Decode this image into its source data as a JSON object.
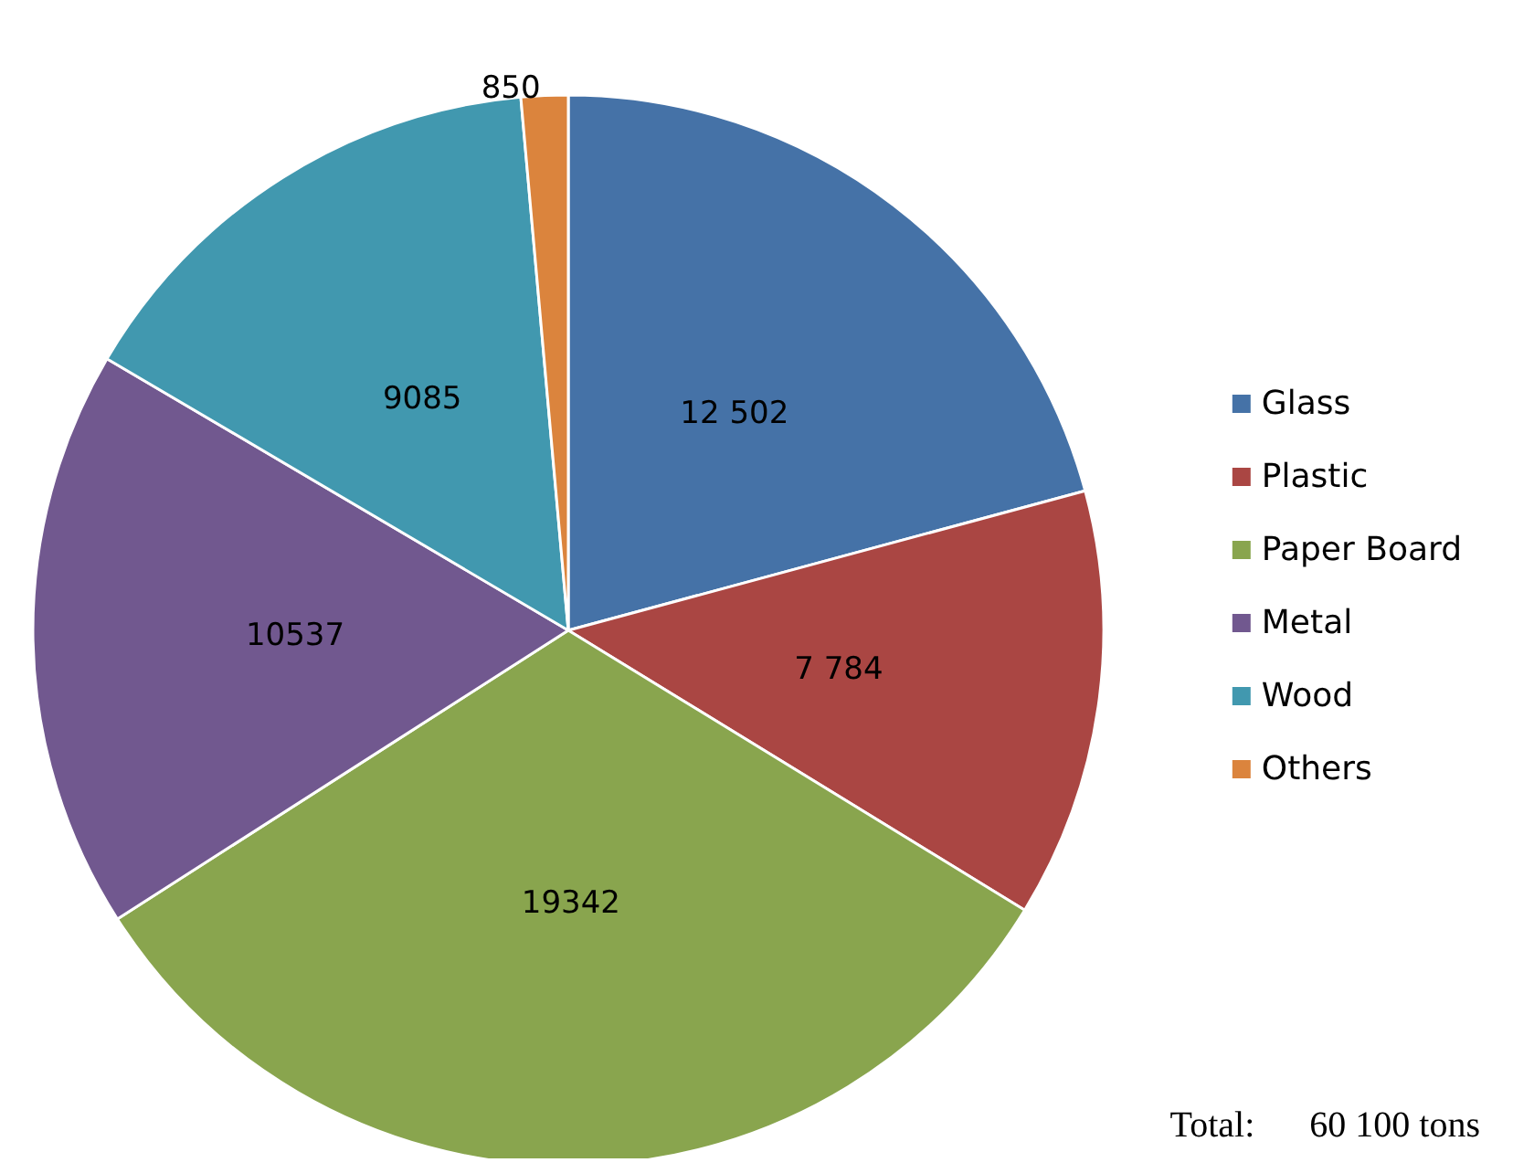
{
  "chart_data": {
    "type": "pie",
    "categories": [
      "Glass",
      "Plastic",
      "Paper Board",
      "Metal",
      "Wood",
      "Others"
    ],
    "values": [
      12502,
      7784,
      19342,
      10537,
      9085,
      850
    ],
    "colors": [
      "#4572a7",
      "#aa4643",
      "#89a54e",
      "#71588f",
      "#4198af",
      "#db843d"
    ],
    "value_labels": [
      "12 502",
      "7 784",
      "19342",
      "10537",
      "9085",
      "850"
    ],
    "legend": "right",
    "annotations": [
      "Total:      60 100 tons"
    ]
  }
}
